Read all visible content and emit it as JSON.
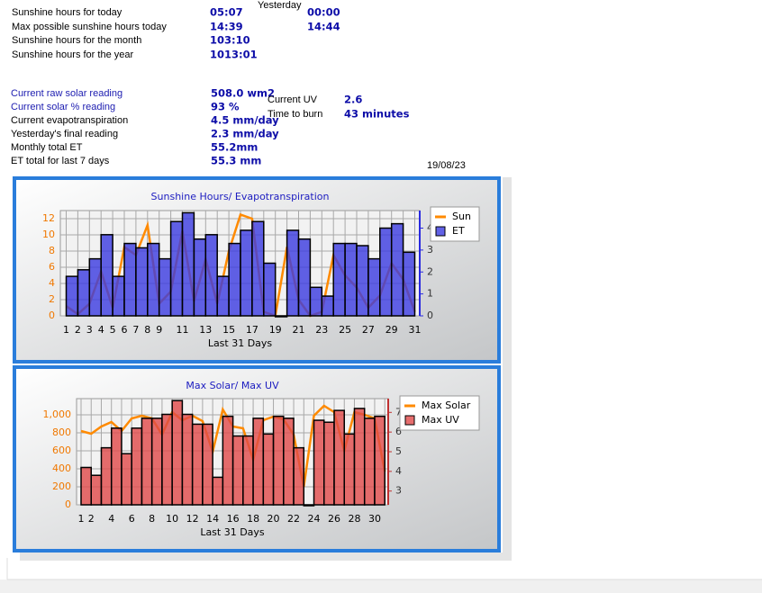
{
  "sunshine": {
    "yesterday_header": "Yesterday",
    "rows": [
      {
        "label": "Sunshine hours for today",
        "today": "05:07",
        "yesterday": "00:00"
      },
      {
        "label": "Max possible sunshine hours today",
        "today": "14:39",
        "yesterday": "14:44"
      },
      {
        "label": "Sunshine hours for the month",
        "today": "103:10"
      },
      {
        "label": "Sunshine hours for the year",
        "today": "1013:01"
      }
    ]
  },
  "solar": {
    "rows": [
      {
        "label": "Current raw solar reading",
        "value": "508.0 wm2"
      },
      {
        "label": "Current solar % reading",
        "value": "93 %"
      },
      {
        "label": "Current evapotranspiration",
        "value": "4.5 mm/day"
      },
      {
        "label": "Yesterday's final reading",
        "value": "2.3 mm/day"
      },
      {
        "label": "Monthly total ET",
        "value": "55.2mm"
      },
      {
        "label": "ET total for last 7 days",
        "value": "55.3 mm"
      }
    ],
    "uv": [
      {
        "label": "Current UV",
        "value": "2.6"
      },
      {
        "label": "Time to burn",
        "value": "43 minutes"
      }
    ]
  },
  "date": "19/08/23",
  "chart_data": [
    {
      "type": "bar_line",
      "title": "Sunshine Hours/ Evapotranspiration",
      "xlabel": "Last 31 Days",
      "categories": [
        "1",
        "2",
        "3",
        "4",
        "5",
        "6",
        "7",
        "8",
        "9",
        null,
        "11",
        null,
        "13",
        null,
        "15",
        null,
        "17",
        null,
        "19",
        null,
        "21",
        null,
        "23",
        null,
        "25",
        null,
        "27",
        null,
        "29",
        null,
        "31"
      ],
      "series": [
        {
          "name": "Sun",
          "color": "#ff8a00",
          "type": "line",
          "values": [
            1.2,
            0.2,
            1.5,
            5.5,
            1.0,
            8.5,
            7.5,
            11.2,
            1.5,
            3.0,
            10.5,
            1.8,
            7.0,
            1.5,
            8.0,
            12.5,
            12.0,
            0.5,
            0,
            8.5,
            2.0,
            0,
            0.5,
            7.5,
            5.0,
            3.5,
            1.0,
            2.5,
            6.5,
            4.5,
            0.5
          ]
        },
        {
          "name": "ET",
          "color": "#3a3ae0",
          "type": "bar",
          "axis": "y2",
          "values": [
            1.8,
            2.1,
            2.6,
            3.7,
            1.8,
            3.3,
            3.1,
            3.3,
            2.6,
            4.3,
            4.7,
            3.5,
            3.7,
            1.8,
            3.3,
            3.9,
            4.3,
            2.4,
            0,
            3.9,
            3.5,
            1.3,
            0.9,
            3.3,
            3.3,
            3.2,
            2.6,
            4.0,
            4.2,
            2.9,
            null
          ]
        }
      ],
      "ylim": [
        0,
        13
      ],
      "yticks": [
        0,
        2,
        4,
        6,
        8,
        10,
        12
      ],
      "y2lim": [
        0,
        4.8
      ],
      "y2ticks": [
        0,
        1,
        2,
        3,
        4
      ],
      "grid": true,
      "legend": "upper right"
    },
    {
      "type": "bar_line",
      "title": "Max Solar/ Max UV",
      "xlabel": "Last 31 Days",
      "categories": [
        "1",
        "2",
        null,
        "4",
        null,
        "6",
        null,
        "8",
        null,
        "10",
        null,
        "12",
        null,
        "14",
        null,
        "16",
        null,
        "18",
        null,
        "20",
        null,
        "22",
        null,
        "24",
        null,
        "26",
        null,
        "28",
        null,
        "30",
        null
      ],
      "series": [
        {
          "name": "Max Solar",
          "color": "#ff8a00",
          "type": "line",
          "values": [
            820,
            790,
            870,
            920,
            820,
            960,
            990,
            960,
            780,
            1030,
            940,
            990,
            930,
            590,
            1060,
            870,
            850,
            500,
            940,
            980,
            950,
            780,
            200,
            990,
            1100,
            1030,
            600,
            1030,
            1000,
            960,
            370
          ]
        },
        {
          "name": "Max UV",
          "color": "#e04848",
          "type": "bar",
          "axis": "y2",
          "values": [
            4.2,
            3.8,
            5.2,
            6.2,
            4.9,
            6.2,
            6.7,
            6.7,
            6.9,
            7.6,
            6.9,
            6.4,
            6.4,
            3.7,
            6.8,
            5.8,
            5.8,
            6.7,
            5.9,
            6.8,
            6.7,
            5.2,
            2.3,
            6.6,
            6.5,
            7.1,
            5.9,
            7.2,
            6.7,
            6.8,
            null
          ]
        }
      ],
      "ylim": [
        0,
        1180
      ],
      "yticks": [
        0,
        200,
        400,
        600,
        800,
        {
          "value": 1000,
          "label": "1,000"
        }
      ],
      "y2lim": [
        2.3,
        7.7
      ],
      "y2ticks": [
        3,
        4,
        5,
        6,
        7
      ],
      "grid": true,
      "legend": "upper right"
    }
  ]
}
